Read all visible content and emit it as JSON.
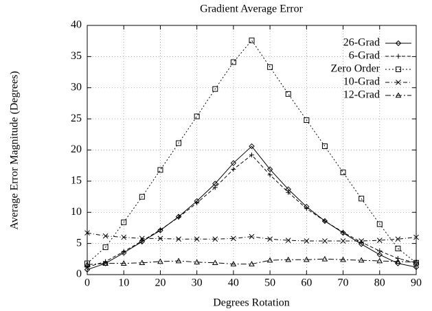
{
  "chart_data": {
    "type": "line",
    "title": "Gradient Average Error",
    "x_label": "Degrees Rotation",
    "y_label": "Average Error Magnitude (Degrees)",
    "x": [
      0,
      5,
      10,
      15,
      20,
      25,
      30,
      35,
      40,
      45,
      50,
      55,
      60,
      65,
      70,
      75,
      80,
      85,
      90
    ],
    "xlim": [
      0,
      90
    ],
    "xticks": [
      0,
      10,
      20,
      30,
      40,
      50,
      60,
      70,
      80,
      90
    ],
    "ylim": [
      0,
      40
    ],
    "yticks": [
      0,
      5,
      10,
      15,
      20,
      25,
      30,
      35,
      40
    ],
    "grid": true,
    "legend": "top-right",
    "series": [
      {
        "name": "26-Grad",
        "color": "#000000",
        "marker": "diamond",
        "dash": "solid",
        "values": [
          0.8,
          1.8,
          3.5,
          5.3,
          7.1,
          9.3,
          11.8,
          14.6,
          17.9,
          20.6,
          16.9,
          13.7,
          10.9,
          8.6,
          6.7,
          4.9,
          3.2,
          1.8,
          1.2
        ]
      },
      {
        "name": "6-Grad",
        "color": "#000000",
        "marker": "plus",
        "dash": "dashed",
        "values": [
          1.2,
          2.1,
          3.7,
          5.4,
          7.2,
          9.2,
          11.5,
          14.0,
          16.9,
          19.2,
          16.0,
          13.2,
          10.6,
          8.6,
          6.8,
          5.2,
          3.8,
          2.6,
          1.9
        ]
      },
      {
        "name": "Zero Order",
        "color": "#000000",
        "marker": "square",
        "dash": "dotted",
        "values": [
          1.8,
          4.4,
          8.4,
          12.5,
          16.8,
          21.1,
          25.4,
          29.8,
          34.1,
          37.6,
          33.3,
          29.0,
          24.8,
          20.6,
          16.4,
          12.2,
          8.1,
          4.2,
          1.9
        ]
      },
      {
        "name": "10-Grad",
        "color": "#000000",
        "marker": "cross",
        "dash": "dashdot",
        "values": [
          6.7,
          6.2,
          6.0,
          5.8,
          5.8,
          5.7,
          5.7,
          5.7,
          5.8,
          6.1,
          5.7,
          5.5,
          5.4,
          5.4,
          5.4,
          5.4,
          5.5,
          5.7,
          6.0
        ]
      },
      {
        "name": "12-Grad",
        "color": "#000000",
        "marker": "triangle",
        "dash": "longdash",
        "values": [
          1.6,
          1.8,
          1.8,
          1.9,
          2.1,
          2.2,
          2.0,
          1.9,
          1.7,
          1.7,
          2.3,
          2.4,
          2.4,
          2.5,
          2.4,
          2.3,
          2.2,
          2.1,
          2.0
        ]
      }
    ]
  }
}
